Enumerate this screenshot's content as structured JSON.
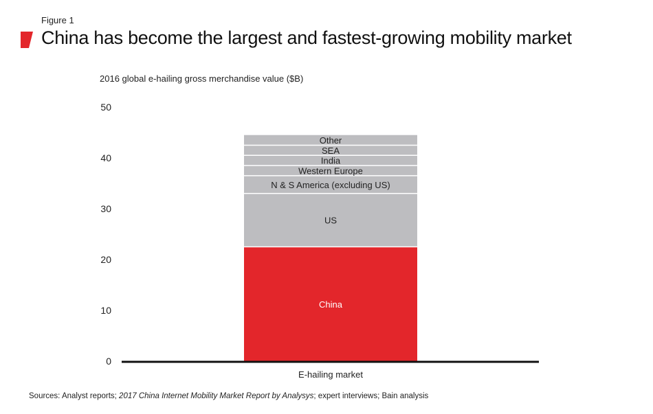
{
  "figure_label": "Figure 1",
  "title": "China has become the largest and fastest-growing mobility market",
  "colors": {
    "accent": "#e3262b",
    "segment_gray": "#bdbdc0",
    "divider": "#ffffff",
    "axis": "#111111"
  },
  "source": {
    "prefix": "Sources: Analyst reports; ",
    "italic": "2017 China Internet Mobility Market Report by Analysys",
    "suffix": "; expert interviews; Bain analysis"
  },
  "chart_data": {
    "type": "bar",
    "stacked": true,
    "ylabel": "2016 global e-hailing gross merchandise value ($B)",
    "ylim": [
      0,
      50
    ],
    "yticks": [
      0,
      10,
      20,
      30,
      40,
      50
    ],
    "grid": false,
    "categories": [
      "E-hailing market"
    ],
    "series": [
      {
        "name": "China",
        "values": [
          22.5
        ],
        "color": "#e3262b",
        "label_color": "#ffffff"
      },
      {
        "name": "US",
        "values": [
          10.5
        ],
        "color": "#bdbdc0",
        "label_color": "#222222"
      },
      {
        "name": "N & S America (excluding US)",
        "values": [
          3.5
        ],
        "color": "#bdbdc0",
        "label_color": "#222222"
      },
      {
        "name": "Western Europe",
        "values": [
          2.0
        ],
        "color": "#bdbdc0",
        "label_color": "#222222"
      },
      {
        "name": "India",
        "values": [
          2.0
        ],
        "color": "#bdbdc0",
        "label_color": "#222222"
      },
      {
        "name": "SEA",
        "values": [
          2.0
        ],
        "color": "#bdbdc0",
        "label_color": "#222222"
      },
      {
        "name": "Other",
        "values": [
          2.0
        ],
        "color": "#bdbdc0",
        "label_color": "#222222"
      }
    ]
  }
}
